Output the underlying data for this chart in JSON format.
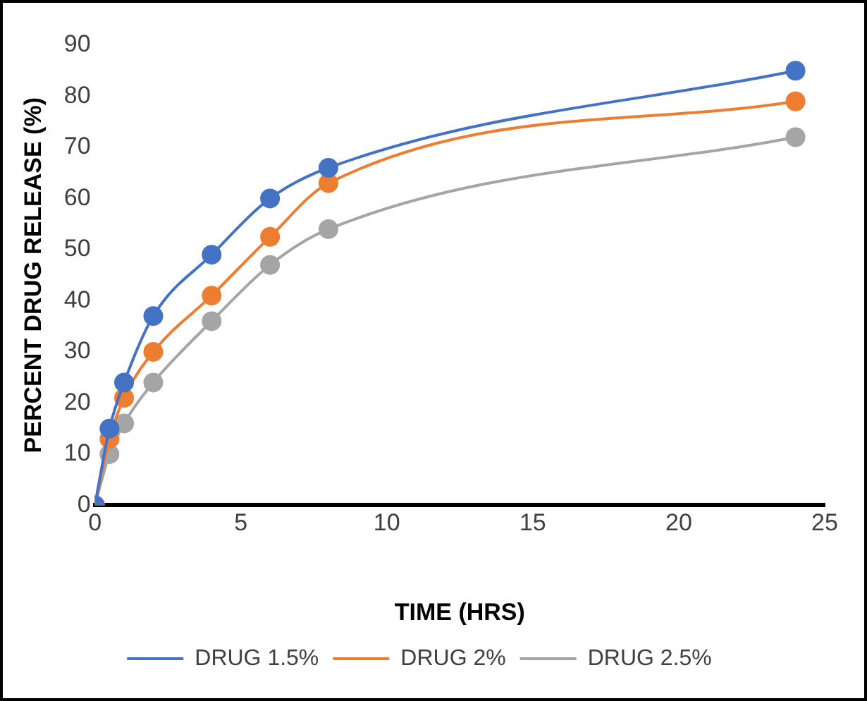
{
  "chart_data": {
    "type": "line",
    "xlabel": "TIME (HRS)",
    "ylabel": "PERCENT DRUG RELEASE (%)",
    "x": [
      0,
      0.5,
      1,
      2,
      4,
      6,
      8,
      24
    ],
    "series": [
      {
        "name": "DRUG 1.5%",
        "color": "#4472c4",
        "values": [
          0,
          15,
          24,
          37,
          49,
          60,
          66,
          85
        ]
      },
      {
        "name": "DRUG 2%",
        "color": "#ed7d31",
        "values": [
          0,
          13,
          21,
          30,
          41,
          52.5,
          63,
          79
        ]
      },
      {
        "name": "DRUG 2.5%",
        "color": "#a5a5a5",
        "values": [
          0,
          10,
          16,
          24,
          36,
          47,
          54,
          72
        ]
      }
    ],
    "xlim": [
      0,
      25
    ],
    "xticks": [
      0,
      5,
      10,
      15,
      20,
      25
    ],
    "ylim": [
      0,
      90
    ],
    "yticks": [
      0,
      10,
      20,
      30,
      40,
      50,
      60,
      70,
      80,
      90
    ],
    "grid": false,
    "legend": "bottom",
    "marker": "circle",
    "line_style": "solid"
  }
}
